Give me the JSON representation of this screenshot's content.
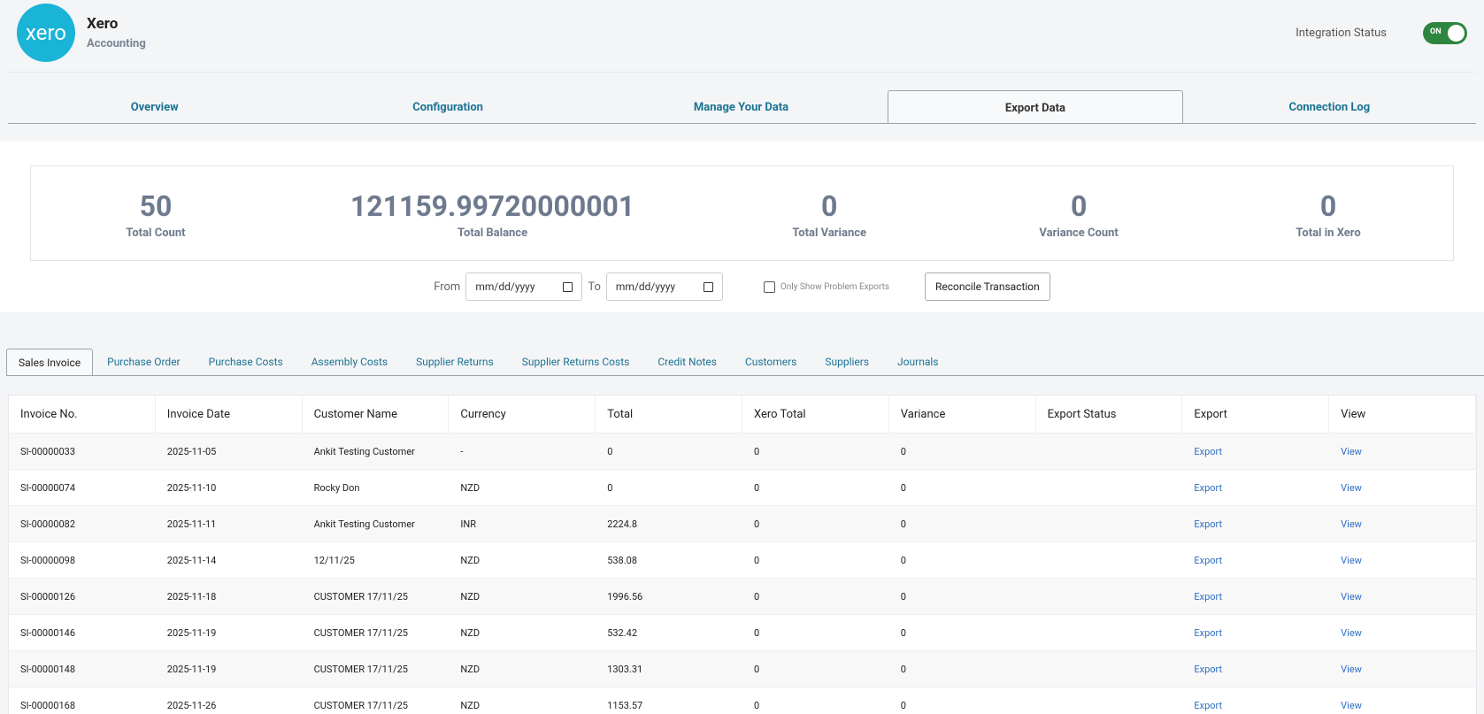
{
  "header": {
    "logo": "xero",
    "title": "Xero",
    "subtitle": "Accounting",
    "status_label": "Integration Status",
    "toggle": "ON"
  },
  "tabs": {
    "items": [
      "Overview",
      "Configuration",
      "Manage Your Data",
      "Export Data",
      "Connection Log"
    ],
    "active": 3
  },
  "stats": [
    {
      "value": 50,
      "label": "Total Count"
    },
    {
      "value": 121159.99720000001,
      "label": "Total Balance"
    },
    {
      "value": 0,
      "label": "Total Variance"
    },
    {
      "value": 0,
      "label": "Variance Count"
    },
    {
      "value": 0,
      "label": "Total in Xero"
    }
  ],
  "filters": {
    "from": "From",
    "to": "To",
    "placeholder": "mm/dd/yyyy",
    "checkbox": "Only Show Problem Exports",
    "button": "Reconcile Transaction"
  },
  "subtabs": {
    "items": [
      "Sales Invoice",
      "Purchase Order",
      "Purchase Costs",
      "Assembly Costs",
      "Supplier Returns",
      "Supplier Returns Costs",
      "Credit Notes",
      "Customers",
      "Suppliers",
      "Journals"
    ],
    "active": 0
  },
  "table": {
    "columns": [
      "Invoice No.",
      "Invoice Date",
      "Customer Name",
      "Currency",
      "Total",
      "Xero Total",
      "Variance",
      "Export Status",
      "Export",
      "View"
    ],
    "export_link": "Export",
    "view_link": "View",
    "rows": [
      {
        "invoice": "SI-00000033",
        "date": "2025-11-05",
        "customer": "Ankit Testing Customer",
        "currency": "-",
        "total": 0,
        "xero_total": 0,
        "variance": 0
      },
      {
        "invoice": "SI-00000074",
        "date": "2025-11-10",
        "customer": "Rocky Don",
        "currency": "NZD",
        "total": 0,
        "xero_total": 0,
        "variance": 0
      },
      {
        "invoice": "SI-00000082",
        "date": "2025-11-11",
        "customer": "Ankit Testing Customer",
        "currency": "INR",
        "total": 2224.8,
        "xero_total": 0,
        "variance": 0
      },
      {
        "invoice": "SI-00000098",
        "date": "2025-11-14",
        "customer": "12/11/25",
        "currency": "NZD",
        "total": 538.08,
        "xero_total": 0,
        "variance": 0
      },
      {
        "invoice": "SI-00000126",
        "date": "2025-11-18",
        "customer": "CUSTOMER 17/11/25",
        "currency": "NZD",
        "total": 1996.56,
        "xero_total": 0,
        "variance": 0
      },
      {
        "invoice": "SI-00000146",
        "date": "2025-11-19",
        "customer": "CUSTOMER 17/11/25",
        "currency": "NZD",
        "total": 532.42,
        "xero_total": 0,
        "variance": 0
      },
      {
        "invoice": "SI-00000148",
        "date": "2025-11-19",
        "customer": "CUSTOMER 17/11/25",
        "currency": "NZD",
        "total": 1303.31,
        "xero_total": 0,
        "variance": 0
      },
      {
        "invoice": "SI-00000168",
        "date": "2025-11-26",
        "customer": "CUSTOMER 17/11/25",
        "currency": "NZD",
        "total": 1153.57,
        "xero_total": 0,
        "variance": 0
      }
    ]
  }
}
